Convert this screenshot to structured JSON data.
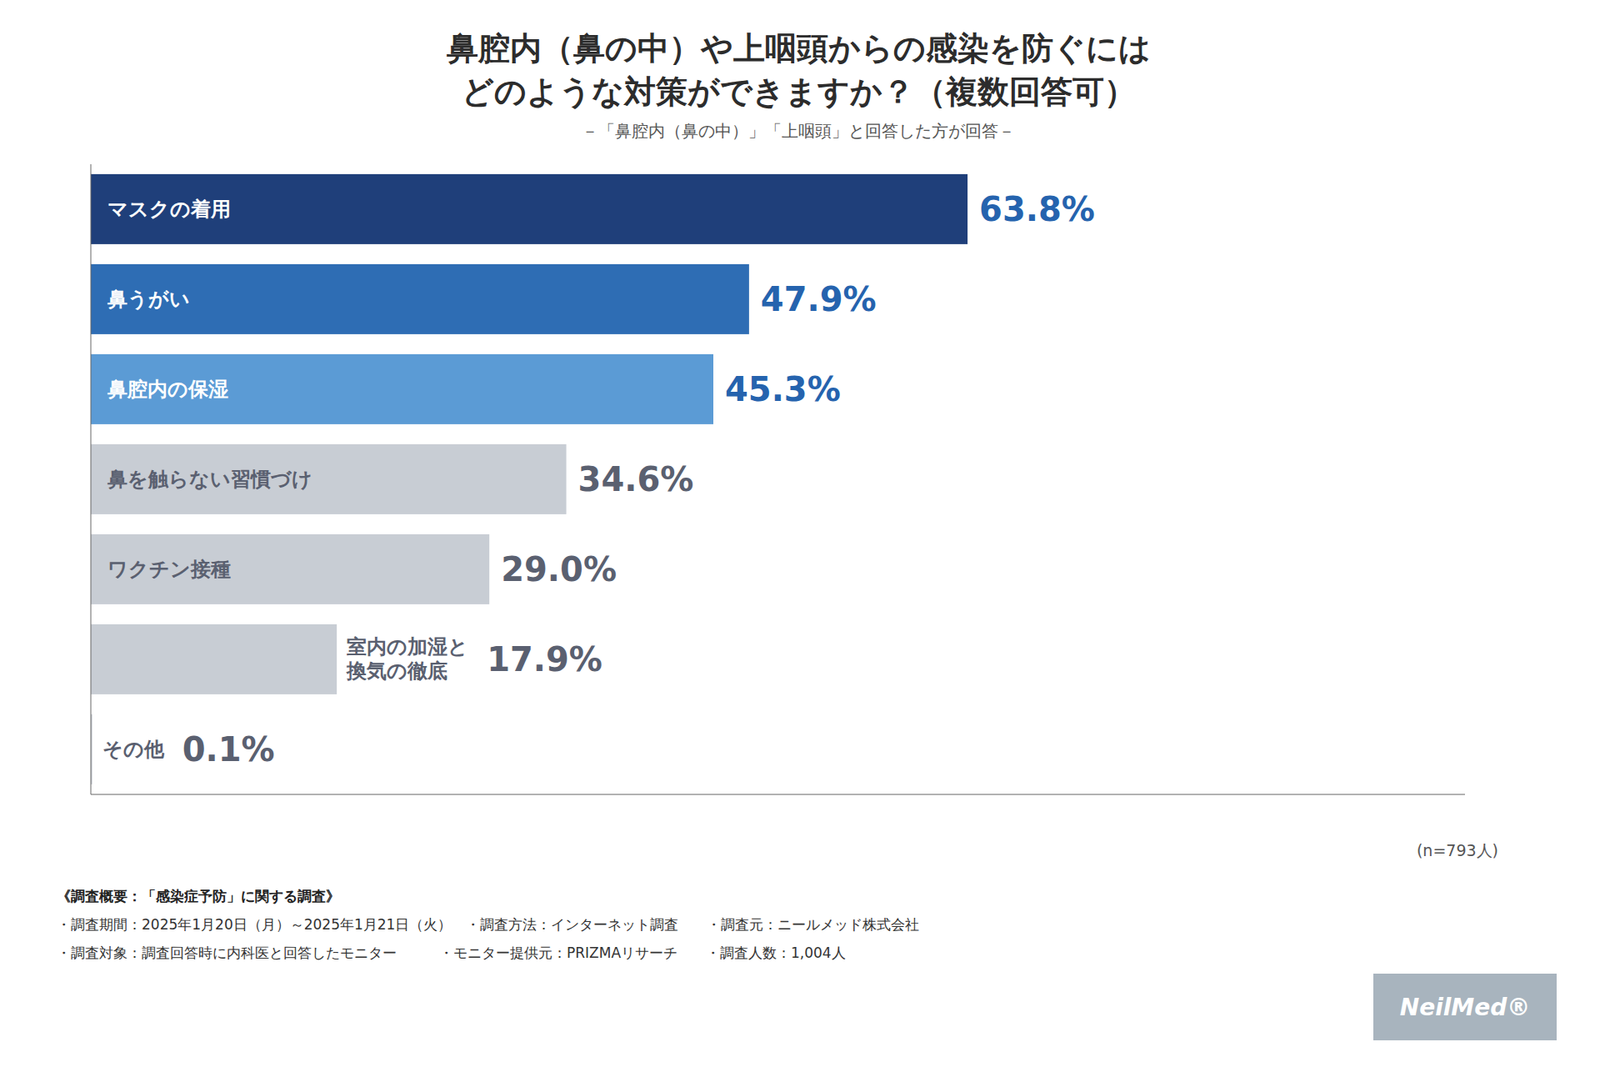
{
  "chart_data": {
    "type": "bar",
    "orientation": "horizontal",
    "title": "鼻腔内（鼻の中）や上咽頭からの感染を防ぐには\nどのような対策ができますか？（複数回答可）",
    "subtitle": "－「鼻腔内（鼻の中）」「上咽頭」と回答した方が回答－",
    "categories": [
      "マスクの着用",
      "鼻うがい",
      "鼻腔内の保湿",
      "鼻を触らない習慣づけ",
      "ワクチン接種",
      "室内の加湿と\n換気の徹底",
      "その他"
    ],
    "values": [
      63.8,
      47.9,
      45.3,
      34.6,
      29.0,
      17.9,
      0.1
    ],
    "value_labels": [
      "63.8%",
      "47.9%",
      "45.3%",
      "34.6%",
      "29.0%",
      "17.9%",
      "0.1%"
    ],
    "colors": [
      "#1f3f7a",
      "#2e6db4",
      "#5b9bd5",
      "#c8cdd4",
      "#c8cdd4",
      "#c8cdd4",
      "#c8cdd4"
    ],
    "xlim": [
      0,
      100
    ],
    "grid": false,
    "data_labels": true,
    "tick_labels": false,
    "annotations": [
      "(n=793人)",
      "《調査概要：「感染症予防」に関する調査》",
      "・調査期間：2025年1月20日（月）～2025年1月21日（火）　・調査方法：インターネット調査　　・調査元：ニールメッド株式会社",
      "・調査対象：調査回答時に内科医と回答したモニター　　　・モニター提供元：PRIZMAリサーチ　　・調査人数：1,004人",
      "NeilMed®"
    ]
  }
}
